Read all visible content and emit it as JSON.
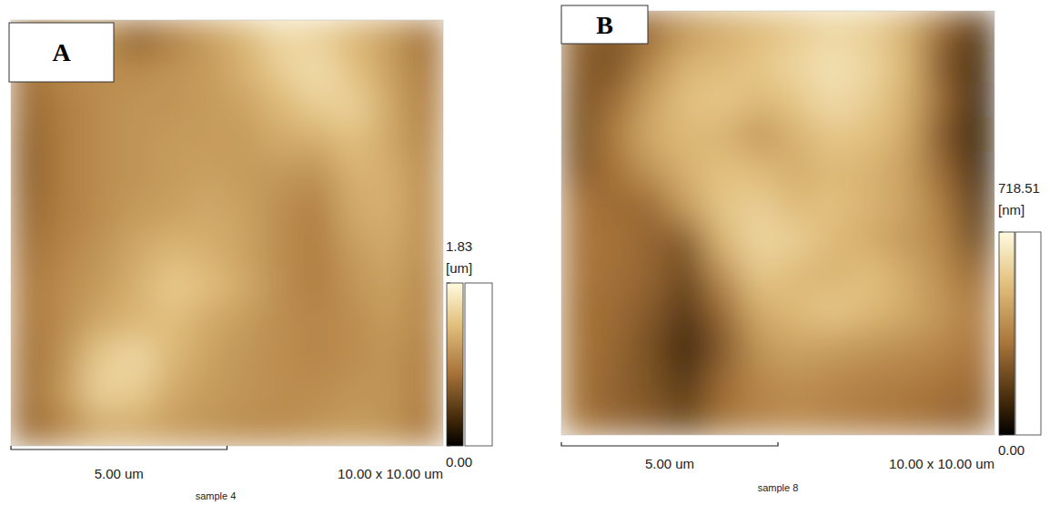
{
  "chart_data": [
    {
      "type": "heatmap",
      "title": "A",
      "xlim": [
        0,
        10
      ],
      "ylim": [
        0,
        10
      ],
      "tick_labels": false,
      "cells": [
        [
          0.85,
          0.95,
          1.0,
          0.7,
          0.9,
          1.1,
          1.3,
          1.55,
          1.5,
          1.3,
          1.1,
          0.8
        ],
        [
          0.8,
          0.95,
          1.0,
          1.0,
          1.05,
          1.1,
          1.25,
          1.45,
          1.6,
          1.4,
          1.15,
          0.85
        ],
        [
          0.75,
          0.9,
          1.0,
          1.05,
          1.05,
          1.1,
          1.15,
          1.3,
          1.45,
          1.5,
          1.2,
          0.9
        ],
        [
          0.7,
          0.9,
          1.0,
          1.05,
          1.1,
          1.1,
          1.1,
          1.2,
          1.2,
          1.35,
          1.2,
          0.95
        ],
        [
          0.7,
          0.9,
          1.0,
          1.05,
          1.1,
          1.15,
          1.1,
          1.05,
          1.0,
          1.25,
          1.25,
          1.0
        ],
        [
          0.75,
          0.9,
          1.0,
          1.1,
          1.15,
          1.2,
          1.15,
          1.0,
          0.9,
          1.2,
          1.25,
          1.0
        ],
        [
          0.8,
          0.95,
          1.05,
          1.2,
          1.3,
          1.25,
          1.15,
          1.0,
          0.9,
          1.1,
          1.2,
          1.0
        ],
        [
          0.85,
          1.0,
          1.1,
          1.25,
          1.45,
          1.35,
          1.2,
          1.0,
          0.9,
          1.05,
          1.15,
          0.95
        ],
        [
          0.85,
          1.0,
          1.2,
          1.3,
          1.35,
          1.2,
          1.1,
          1.0,
          0.95,
          1.0,
          1.1,
          0.95
        ],
        [
          0.8,
          1.05,
          1.45,
          1.55,
          1.3,
          1.15,
          1.05,
          1.0,
          0.95,
          1.0,
          1.05,
          0.9
        ],
        [
          0.8,
          1.1,
          1.5,
          1.45,
          1.2,
          1.1,
          1.05,
          1.0,
          1.0,
          1.05,
          1.05,
          0.9
        ],
        [
          0.75,
          0.95,
          1.2,
          1.2,
          1.1,
          1.05,
          1.0,
          1.0,
          1.05,
          1.1,
          1.05,
          0.85
        ]
      ],
      "color_range": [
        0,
        1.83
      ],
      "color_ticks": [
        {
          "value": 0,
          "label": "0.00"
        },
        {
          "value": 1.83,
          "label": "1.83"
        }
      ],
      "color_label": "[um]",
      "scale_bar": {
        "value": 5,
        "label": "5.00 um"
      },
      "image_size": "10.00 x 10.00 um",
      "caption": "sample 4"
    },
    {
      "type": "heatmap",
      "title": "B",
      "xlim": [
        0,
        10
      ],
      "ylim": [
        0,
        10
      ],
      "tick_labels": false,
      "cells": [
        [
          280,
          250,
          300,
          420,
          480,
          520,
          560,
          600,
          580,
          500,
          300,
          150
        ],
        [
          260,
          230,
          380,
          500,
          520,
          560,
          600,
          640,
          600,
          520,
          250,
          120
        ],
        [
          240,
          300,
          450,
          540,
          560,
          520,
          560,
          620,
          580,
          500,
          300,
          100
        ],
        [
          230,
          350,
          480,
          520,
          500,
          420,
          500,
          560,
          540,
          480,
          250,
          80
        ],
        [
          250,
          320,
          420,
          500,
          540,
          520,
          480,
          520,
          500,
          450,
          300,
          100
        ],
        [
          330,
          300,
          300,
          450,
          560,
          580,
          520,
          540,
          500,
          460,
          350,
          150
        ],
        [
          330,
          320,
          280,
          250,
          520,
          600,
          580,
          520,
          480,
          430,
          380,
          200
        ],
        [
          330,
          310,
          280,
          200,
          400,
          560,
          520,
          500,
          540,
          480,
          400,
          300
        ],
        [
          320,
          300,
          250,
          150,
          300,
          480,
          520,
          560,
          520,
          480,
          420,
          350
        ],
        [
          320,
          290,
          220,
          100,
          250,
          420,
          460,
          440,
          420,
          400,
          380,
          330
        ],
        [
          320,
          280,
          230,
          150,
          300,
          380,
          400,
          380,
          360,
          350,
          330,
          300
        ],
        [
          320,
          280,
          250,
          200,
          320,
          360,
          380,
          360,
          340,
          320,
          300,
          280
        ]
      ],
      "color_range": [
        0,
        718.51
      ],
      "color_ticks": [
        {
          "value": 0,
          "label": "0.00"
        },
        {
          "value": 718.51,
          "label": "718.51"
        }
      ],
      "color_label": "[nm]",
      "scale_bar": {
        "value": 5,
        "label": "5.00 um"
      },
      "image_size": "10.00 x 10.00 um",
      "caption": "sample 8"
    }
  ]
}
